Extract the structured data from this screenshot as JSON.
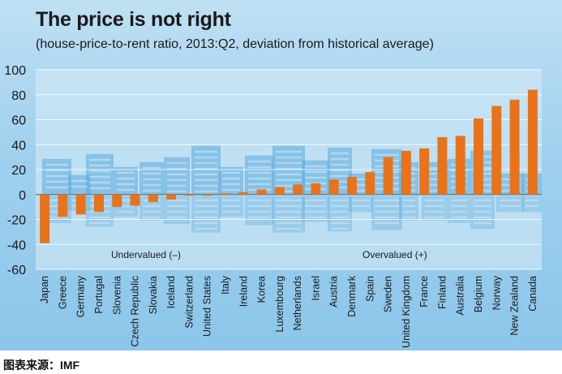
{
  "chart_data": {
    "type": "bar",
    "title": "The price is not right",
    "subtitle": "(house-price-to-rent ratio, 2013:Q2, deviation from historical average)",
    "categories": [
      "Japan",
      "Greece",
      "Germany",
      "Portugal",
      "Slovenia",
      "Czech Republic",
      "Slovakia",
      "Iceland",
      "Switzerland",
      "United States",
      "Italy",
      "Ireland",
      "Korea",
      "Luxembourg",
      "Netherlands",
      "Israel",
      "Austria",
      "Denmark",
      "Spain",
      "Sweden",
      "United Kingdom",
      "France",
      "Finland",
      "Australia",
      "Belgium",
      "Norway",
      "New Zealand",
      "Canada"
    ],
    "values": [
      -39,
      -18,
      -16,
      -14,
      -10,
      -9,
      -6,
      -4,
      -1,
      -1,
      1,
      2,
      4,
      6,
      8,
      9,
      12,
      14,
      18,
      30,
      35,
      37,
      46,
      47,
      61,
      71,
      76,
      84
    ],
    "ylim": [
      -60,
      100
    ],
    "yticks": [
      -60,
      -40,
      -20,
      0,
      20,
      40,
      60,
      80,
      100
    ],
    "annotations": {
      "undervalued": "Undervalued (–)",
      "overvalued": "Overvalued (+)"
    },
    "xlabel": "",
    "ylabel": "",
    "bar_color": "#e8731b"
  },
  "source": "图表来源：IMF"
}
